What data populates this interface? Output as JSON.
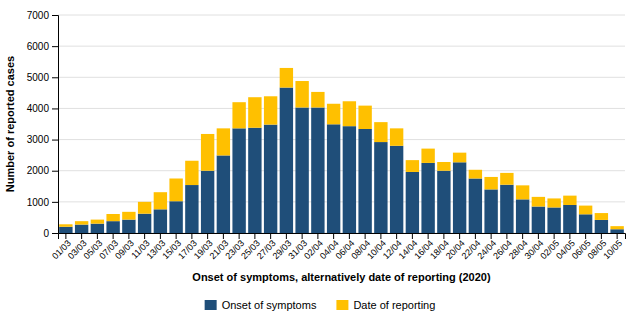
{
  "chart_data": {
    "type": "bar",
    "stacked": true,
    "categories": [
      "01/03",
      "03/03",
      "05/03",
      "07/03",
      "09/03",
      "11/03",
      "13/03",
      "15/03",
      "17/03",
      "19/03",
      "21/03",
      "23/03",
      "25/03",
      "27/03",
      "29/03",
      "31/03",
      "02/04",
      "04/04",
      "06/04",
      "08/04",
      "10/04",
      "12/04",
      "14/04",
      "16/04",
      "18/04",
      "20/04",
      "22/04",
      "24/04",
      "26/04",
      "28/04",
      "30/04",
      "02/05",
      "04/05",
      "06/05",
      "08/05",
      "10/05"
    ],
    "series": [
      {
        "name": "Onset of symptoms",
        "color": "#1f4e79",
        "values": [
          200,
          270,
          300,
          380,
          430,
          620,
          760,
          1020,
          1540,
          2000,
          2490,
          3360,
          3380,
          3480,
          4670,
          4030,
          4030,
          3490,
          3430,
          3340,
          2920,
          2800,
          1960,
          2250,
          2000,
          2270,
          1750,
          1400,
          1550,
          1080,
          850,
          820,
          900,
          600,
          420,
          120
        ]
      },
      {
        "name": "Date of reporting",
        "color": "#ffc000",
        "values": [
          80,
          110,
          130,
          230,
          250,
          380,
          550,
          730,
          780,
          1180,
          870,
          840,
          980,
          910,
          630,
          850,
          500,
          660,
          800,
          750,
          640,
          560,
          380,
          460,
          280,
          310,
          280,
          400,
          380,
          450,
          310,
          290,
          300,
          280,
          220,
          100
        ]
      }
    ],
    "x_label": "Onset of symptoms, alternatively date of reporting (2020)",
    "y_label": "Number of reported cases",
    "ylim": [
      0,
      7000
    ],
    "yticks": [
      0,
      1000,
      2000,
      3000,
      4000,
      5000,
      6000,
      7000
    ],
    "grid": true,
    "legend": "bottom"
  }
}
